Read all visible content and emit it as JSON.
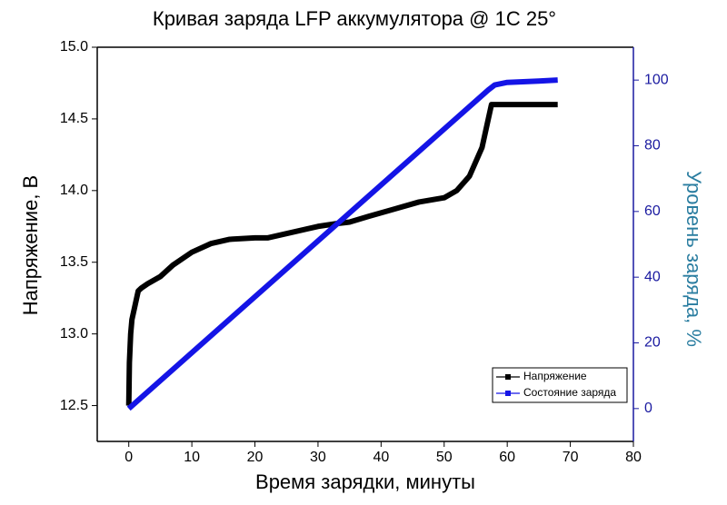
{
  "chart_data": {
    "type": "line",
    "title": "Кривая заряда LFP аккумулятора @ 1C   25°",
    "x_label": "Время зарядки, минуты",
    "y_label": "Напряжение, В",
    "y2_label": "Уровень заряда, %",
    "xlim": [
      -5,
      80
    ],
    "xticks": [
      0,
      10,
      20,
      30,
      40,
      50,
      60,
      70,
      80
    ],
    "ylim": [
      12.25,
      15.0
    ],
    "yticks": [
      12.5,
      {
        "value": 13,
        "label": "13.0"
      },
      13.5,
      {
        "value": 14,
        "label": "14.0"
      },
      14.5,
      {
        "value": 15,
        "label": "15.0"
      }
    ],
    "y2lim": [
      -10,
      110
    ],
    "y2ticks": [
      0,
      20,
      40,
      60,
      80,
      100
    ],
    "legend": "lower right",
    "series": [
      {
        "name": "Напряжение",
        "color": "#000000",
        "x": [
          0,
          0.1,
          0.3,
          0.5,
          1,
          1.5,
          2,
          3,
          5,
          7,
          10,
          13,
          16,
          20,
          22,
          25,
          30,
          33,
          35,
          38,
          42,
          46,
          50,
          52,
          54,
          56,
          57,
          57.5,
          60,
          68
        ],
        "values": [
          12.5,
          12.8,
          13.0,
          13.1,
          13.2,
          13.3,
          13.32,
          13.35,
          13.4,
          13.48,
          13.57,
          13.63,
          13.66,
          13.67,
          13.67,
          13.7,
          13.75,
          13.77,
          13.78,
          13.82,
          13.87,
          13.92,
          13.95,
          14.0,
          14.1,
          14.3,
          14.5,
          14.6,
          14.6,
          14.6
        ]
      },
      {
        "name": "Состояние заряда",
        "color": "#1414e6",
        "axis": "y2",
        "x": [
          0,
          57,
          58,
          60,
          65,
          68
        ],
        "values": [
          0,
          97,
          98.5,
          99.3,
          99.7,
          100
        ]
      }
    ]
  }
}
